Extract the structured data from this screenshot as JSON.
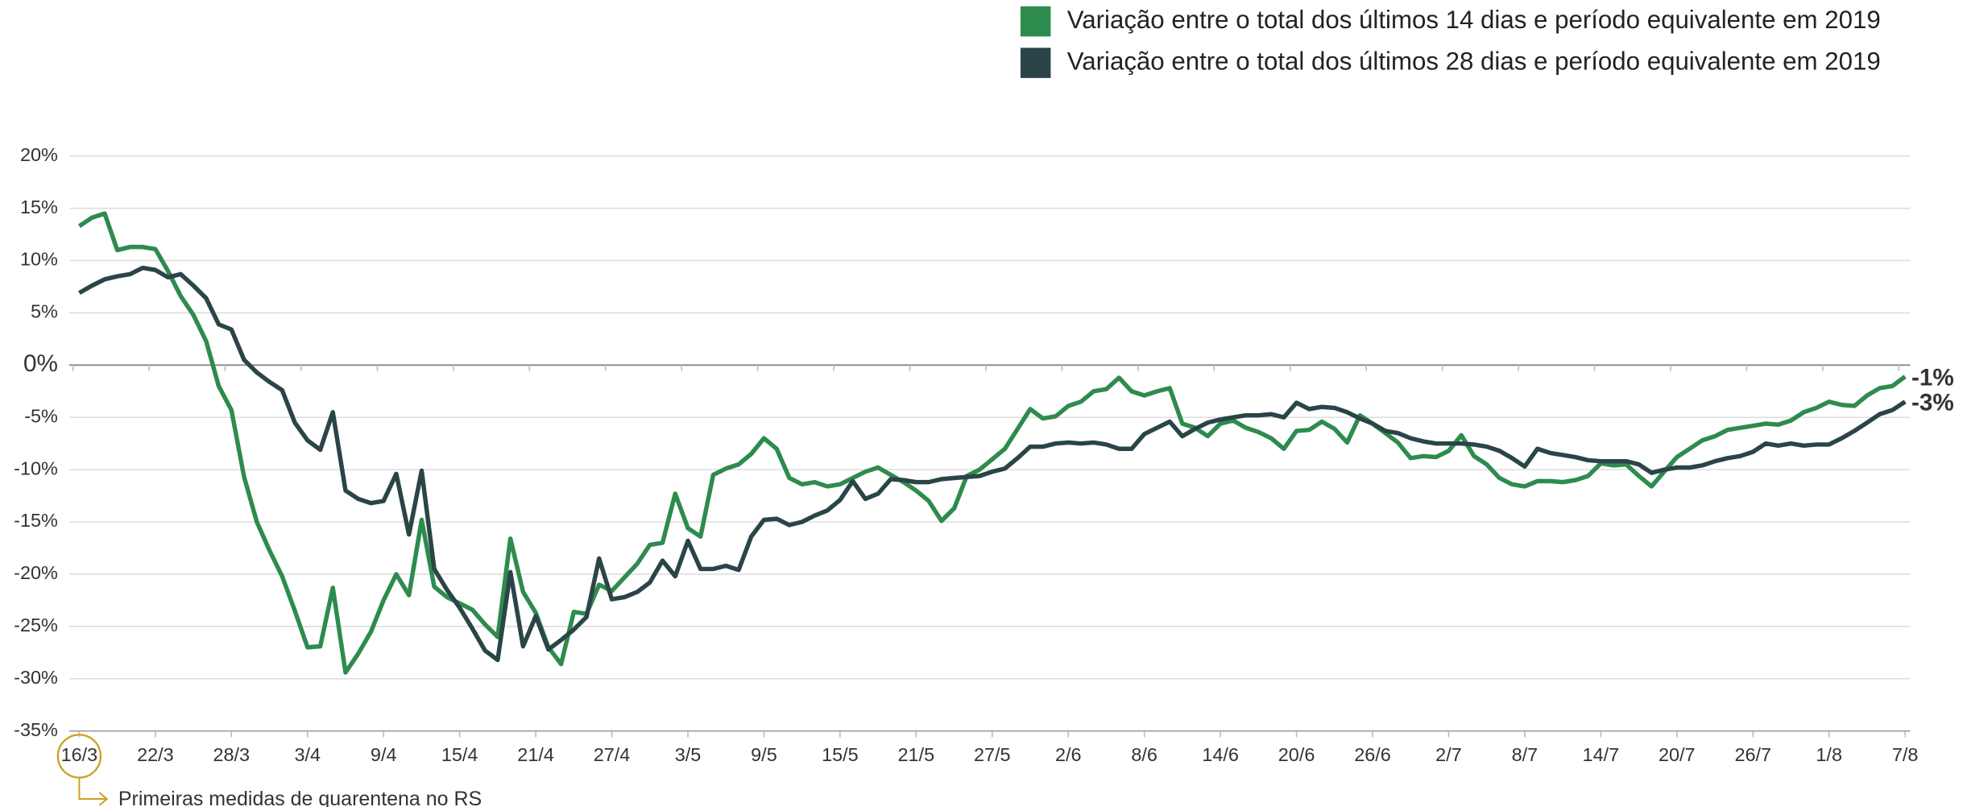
{
  "chart_data": {
    "type": "line",
    "categories": [
      "16/3",
      null,
      null,
      null,
      null,
      null,
      "22/3",
      null,
      null,
      null,
      null,
      null,
      "28/3",
      null,
      null,
      null,
      null,
      null,
      "3/4",
      null,
      null,
      null,
      null,
      null,
      "9/4",
      null,
      null,
      null,
      null,
      null,
      "15/4",
      null,
      null,
      null,
      null,
      null,
      "21/4",
      null,
      null,
      null,
      null,
      null,
      "27/4",
      null,
      null,
      null,
      null,
      null,
      "3/5",
      null,
      null,
      null,
      null,
      null,
      "9/5",
      null,
      null,
      null,
      null,
      null,
      "15/5",
      null,
      null,
      null,
      null,
      null,
      "21/5",
      null,
      null,
      null,
      null,
      null,
      "27/5",
      null,
      null,
      null,
      null,
      null,
      "2/6",
      null,
      null,
      null,
      null,
      null,
      "8/6",
      null,
      null,
      null,
      null,
      null,
      "14/6",
      null,
      null,
      null,
      null,
      null,
      "20/6",
      null,
      null,
      null,
      null,
      null,
      "26/6",
      null,
      null,
      null,
      null,
      null,
      "2/7",
      null,
      null,
      null,
      null,
      null,
      "8/7",
      null,
      null,
      null,
      null,
      null,
      "14/7",
      null,
      null,
      null,
      null,
      null,
      "20/7",
      null,
      null,
      null,
      null,
      null,
      "26/7",
      null,
      null,
      null,
      null,
      null,
      "1/8",
      null,
      null,
      null,
      null,
      null,
      "7/8"
    ],
    "series": [
      {
        "name": "Variação entre o total dos últimos 14 dias e período equivalente em 2019",
        "color": "#2e8b4e",
        "end_label": "-1%",
        "values": [
          13.3,
          14.1,
          14.5,
          11.0,
          11.3,
          11.3,
          11.1,
          9.0,
          6.6,
          4.8,
          2.3,
          -2.0,
          -4.3,
          -10.7,
          -15,
          -17.7,
          -20.2,
          -23.5,
          -27,
          -26.9,
          -21.3,
          -29.4,
          -27.6,
          -25.5,
          -22.5,
          -20,
          -22,
          -14.8,
          -21.2,
          -22.2,
          -22.8,
          -23.4,
          -24.8,
          -26,
          -16.6,
          -21.7,
          -23.7,
          -27,
          -28.6,
          -23.6,
          -23.8,
          -21,
          -21.6,
          -20.3,
          -19,
          -17.2,
          -17,
          -12.3,
          -15.6,
          -16.4,
          -10.5,
          -9.9,
          -9.5,
          -8.5,
          -7.0,
          -8,
          -10.8,
          -11.4,
          -11.2,
          -11.6,
          -11.4,
          -10.8,
          -10.2,
          -9.8,
          -10.5,
          -11.2,
          -12,
          -13,
          -14.9,
          -13.7,
          -10.6,
          -10,
          -9,
          -8,
          -6.1,
          -4.2,
          -5.1,
          -4.9,
          -3.9,
          -3.5,
          -2.5,
          -2.3,
          -1.2,
          -2.5,
          -2.9,
          -2.5,
          -2.2,
          -5.6,
          -6,
          -6.8,
          -5.6,
          -5.3,
          -6,
          -6.4,
          -7,
          -8,
          -6.3,
          -6.2,
          -5.4,
          -6.1,
          -7.4,
          -4.8,
          -5.6,
          -6.5,
          -7.4,
          -8.9,
          -8.7,
          -8.8,
          -8.2,
          -6.7,
          -8.7,
          -9.5,
          -10.8,
          -11.4,
          -11.6,
          -11.1,
          -11.1,
          -11.2,
          -11,
          -10.6,
          -9.4,
          -9.6,
          -9.5,
          -10.6,
          -11.6,
          -10.2,
          -8.8,
          -8,
          -7.2,
          -6.8,
          -6.2,
          -6,
          -5.8,
          -5.6,
          -5.7,
          -5.3,
          -4.5,
          -4.1,
          -3.5,
          -3.8,
          -3.9,
          -2.9,
          -2.2,
          -2,
          -1.1
        ]
      },
      {
        "name": "Variação entre o total dos últimos 28 dias e período equivalente em 2019",
        "color": "#2b4448",
        "end_label": "-3%",
        "values": [
          6.9,
          7.6,
          8.2,
          8.5,
          8.7,
          9.3,
          9.1,
          8.4,
          8.7,
          7.6,
          6.4,
          3.9,
          3.4,
          0.5,
          -0.7,
          -1.6,
          -2.4,
          -5.5,
          -7.2,
          -8.1,
          -4.5,
          -12,
          -12.8,
          -13.2,
          -13,
          -10.4,
          -16.2,
          -10.1,
          -19.5,
          -21.5,
          -23.2,
          -25.2,
          -27.3,
          -28.2,
          -19.8,
          -26.9,
          -24,
          -27.2,
          -26.3,
          -25.3,
          -24.1,
          -18.5,
          -22.4,
          -22.2,
          -21.7,
          -20.8,
          -18.7,
          -20.2,
          -16.8,
          -19.5,
          -19.5,
          -19.2,
          -19.6,
          -16.4,
          -14.8,
          -14.7,
          -15.3,
          -15,
          -14.4,
          -13.9,
          -12.9,
          -11.1,
          -12.8,
          -12.3,
          -10.9,
          -11,
          -11.2,
          -11.2,
          -10.9,
          -10.8,
          -10.7,
          -10.6,
          -10.2,
          -9.9,
          -8.9,
          -7.8,
          -7.8,
          -7.5,
          -7.4,
          -7.5,
          -7.4,
          -7.6,
          -8,
          -8,
          -6.6,
          -6,
          -5.4,
          -6.8,
          -6.1,
          -5.5,
          -5.2,
          -5,
          -4.8,
          -4.8,
          -4.7,
          -5,
          -3.6,
          -4.2,
          -4,
          -4.1,
          -4.5,
          -5.1,
          -5.6,
          -6.3,
          -6.5,
          -7,
          -7.3,
          -7.5,
          -7.5,
          -7.5,
          -7.6,
          -7.8,
          -8.2,
          -8.9,
          -9.7,
          -8,
          -8.4,
          -8.6,
          -8.8,
          -9.1,
          -9.2,
          -9.2,
          -9.2,
          -9.5,
          -10.3,
          -10,
          -9.8,
          -9.8,
          -9.6,
          -9.2,
          -8.9,
          -8.7,
          -8.3,
          -7.5,
          -7.7,
          -7.5,
          -7.7,
          -7.6,
          -7.6,
          -7,
          -6.3,
          -5.5,
          -4.7,
          -4.3,
          -3.5
        ]
      }
    ],
    "ylim": [
      -35,
      20
    ],
    "yticks": [
      {
        "value": -35,
        "label": "-35%"
      },
      {
        "value": -30,
        "label": "-30%"
      },
      {
        "value": -25,
        "label": "-25%"
      },
      {
        "value": -20,
        "label": "-20%"
      },
      {
        "value": -15,
        "label": "-15%"
      },
      {
        "value": -10,
        "label": "-10%"
      },
      {
        "value": -5,
        "label": "-5%"
      },
      {
        "value": 0,
        "label": "0%"
      },
      {
        "value": 5,
        "label": "5%"
      },
      {
        "value": 10,
        "label": "10%"
      },
      {
        "value": 15,
        "label": "15%"
      },
      {
        "value": 20,
        "label": "20%"
      }
    ],
    "grid": true,
    "legend": "top-right",
    "annotation": {
      "text": "Primeiras medidas de quarentena no RS",
      "category_index": 0,
      "color": "#c9a227"
    }
  }
}
